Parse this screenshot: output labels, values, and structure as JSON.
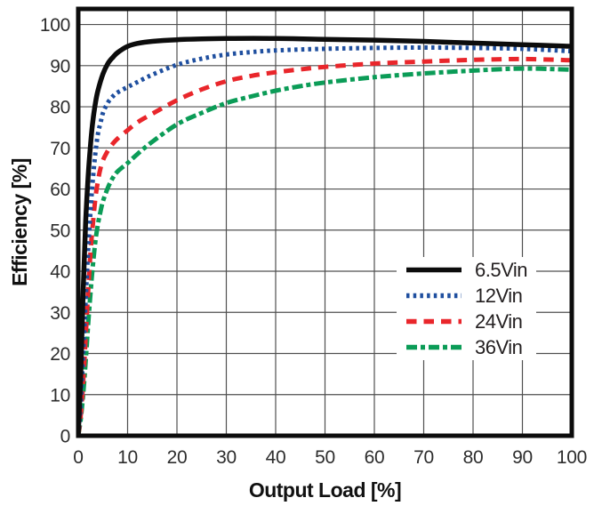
{
  "page": {
    "background": "#ffffff",
    "text_color": "#231f20",
    "grid_color": "#4f4f4f",
    "frame_color": "#0c0c0c",
    "tick_label_color": "#2d2d2d"
  },
  "chart_data": {
    "type": "line",
    "title": "",
    "xlabel": "Output Load [%]",
    "ylabel": "Efficiency [%]",
    "xlim": [
      0,
      100
    ],
    "ylim": [
      0,
      103.8
    ],
    "x_ticks": [
      0,
      10,
      20,
      30,
      40,
      50,
      60,
      70,
      80,
      90,
      100
    ],
    "y_ticks": [
      0,
      10,
      20,
      30,
      40,
      50,
      60,
      70,
      80,
      90,
      100
    ],
    "grid": true,
    "legend_position": "inside-lower-right",
    "series": [
      {
        "name": "6.5Vin",
        "color": "#0c0c0c",
        "style": "solid",
        "points": [
          [
            0,
            0
          ],
          [
            0.5,
            15
          ],
          [
            1,
            35
          ],
          [
            1.5,
            52
          ],
          [
            2,
            63
          ],
          [
            2.5,
            71
          ],
          [
            3,
            77
          ],
          [
            3.5,
            81
          ],
          [
            4,
            84
          ],
          [
            5,
            88
          ],
          [
            6,
            90.5
          ],
          [
            7,
            92
          ],
          [
            8,
            93.2
          ],
          [
            10,
            94.7
          ],
          [
            12,
            95.4
          ],
          [
            15,
            95.9
          ],
          [
            20,
            96.3
          ],
          [
            25,
            96.5
          ],
          [
            30,
            96.6
          ],
          [
            40,
            96.6
          ],
          [
            50,
            96.4
          ],
          [
            60,
            96.2
          ],
          [
            70,
            95.9
          ],
          [
            80,
            95.5
          ],
          [
            90,
            95.1
          ],
          [
            100,
            94.7
          ]
        ]
      },
      {
        "name": "12Vin",
        "color": "#1f4f9f",
        "style": "dotted",
        "points": [
          [
            0,
            0
          ],
          [
            0.5,
            8
          ],
          [
            1,
            20
          ],
          [
            1.5,
            33
          ],
          [
            2,
            45
          ],
          [
            2.5,
            55
          ],
          [
            3,
            63
          ],
          [
            3.5,
            69
          ],
          [
            4,
            73.5
          ],
          [
            4.5,
            76
          ],
          [
            5,
            78.5
          ],
          [
            6,
            81
          ],
          [
            7,
            82.5
          ],
          [
            8,
            83.5
          ],
          [
            10,
            84.8
          ],
          [
            12,
            86
          ],
          [
            15,
            87.8
          ],
          [
            20,
            90.2
          ],
          [
            25,
            91.7
          ],
          [
            30,
            92.7
          ],
          [
            35,
            93.3
          ],
          [
            40,
            93.7
          ],
          [
            50,
            94.1
          ],
          [
            60,
            94.3
          ],
          [
            70,
            94.4
          ],
          [
            80,
            94.3
          ],
          [
            90,
            94.1
          ],
          [
            100,
            93.5
          ]
        ]
      },
      {
        "name": "24Vin",
        "color": "#e9262b",
        "style": "dashed",
        "points": [
          [
            0,
            0
          ],
          [
            0.5,
            5
          ],
          [
            1,
            13
          ],
          [
            1.5,
            24
          ],
          [
            2,
            35
          ],
          [
            2.5,
            45
          ],
          [
            3,
            52
          ],
          [
            3.5,
            58
          ],
          [
            4,
            62
          ],
          [
            4.5,
            65
          ],
          [
            5,
            67
          ],
          [
            6,
            69.3
          ],
          [
            7,
            71
          ],
          [
            8,
            72.3
          ],
          [
            10,
            74.3
          ],
          [
            12,
            76.2
          ],
          [
            15,
            78.3
          ],
          [
            20,
            81.6
          ],
          [
            25,
            84.2
          ],
          [
            30,
            86.2
          ],
          [
            35,
            87.5
          ],
          [
            40,
            88.4
          ],
          [
            45,
            89.1
          ],
          [
            50,
            89.7
          ],
          [
            60,
            90.5
          ],
          [
            70,
            91
          ],
          [
            80,
            91.4
          ],
          [
            90,
            91.6
          ],
          [
            100,
            91.3
          ]
        ]
      },
      {
        "name": "36Vin",
        "color": "#0b9c57",
        "style": "dash-dot",
        "points": [
          [
            0,
            0
          ],
          [
            0.5,
            4
          ],
          [
            1,
            10
          ],
          [
            1.5,
            18
          ],
          [
            2,
            27
          ],
          [
            2.5,
            35
          ],
          [
            3,
            42
          ],
          [
            3.5,
            47.5
          ],
          [
            4,
            51.5
          ],
          [
            4.5,
            54.5
          ],
          [
            5,
            57
          ],
          [
            6,
            60.3
          ],
          [
            7,
            62.7
          ],
          [
            8,
            64.3
          ],
          [
            10,
            66.3
          ],
          [
            12,
            68.5
          ],
          [
            15,
            71.5
          ],
          [
            20,
            75.7
          ],
          [
            25,
            78.5
          ],
          [
            30,
            80.9
          ],
          [
            35,
            82.5
          ],
          [
            40,
            83.9
          ],
          [
            45,
            85
          ],
          [
            50,
            85.9
          ],
          [
            60,
            87.2
          ],
          [
            70,
            88.1
          ],
          [
            80,
            88.8
          ],
          [
            90,
            89.3
          ],
          [
            100,
            89
          ]
        ]
      }
    ]
  }
}
